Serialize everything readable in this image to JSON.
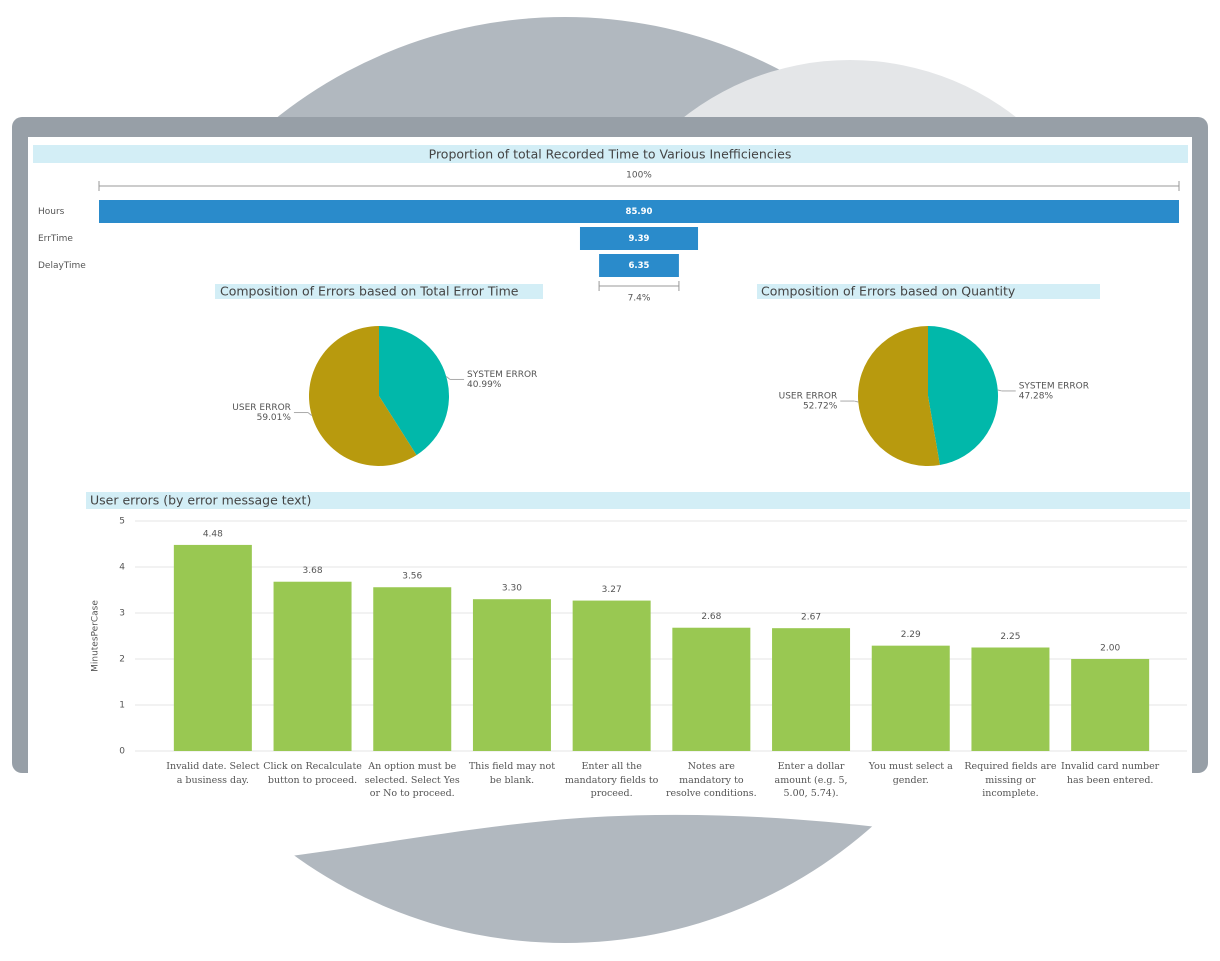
{
  "chart_data": [
    {
      "type": "funnel",
      "title": "Proportion of total Recorded Time to Various Inefficiencies",
      "categories": [
        "Hours",
        "ErrTime",
        "DelayTime"
      ],
      "values": [
        85.9,
        9.39,
        6.35
      ],
      "value_labels": [
        "85.90",
        "9.39",
        "6.35"
      ],
      "color": "#2a8bcb",
      "top_annotation": "100%",
      "bottom_annotation": "7.4%"
    },
    {
      "type": "pie",
      "title": "Composition of Errors based on Total Error Time",
      "categories": [
        "SYSTEM ERROR",
        "USER ERROR"
      ],
      "values": [
        40.99,
        59.01
      ],
      "value_labels": [
        "40.99%",
        "59.01%"
      ],
      "colors": [
        "#01b8aa",
        "#b89a0e"
      ]
    },
    {
      "type": "pie",
      "title": "Composition of Errors based on Quantity",
      "categories": [
        "SYSTEM ERROR",
        "USER ERROR"
      ],
      "values": [
        47.28,
        52.72
      ],
      "value_labels": [
        "47.28%",
        "52.72%"
      ],
      "colors": [
        "#01b8aa",
        "#b89a0e"
      ]
    },
    {
      "type": "bar",
      "title": "User errors (by error message text)",
      "y_label": "MinutesPerCase",
      "categories": [
        "Invalid date. Select a business day.",
        "Click on Recalculate button to proceed.",
        "An option must be selected. Select Yes or No to proceed.",
        "This field may not be blank.",
        "Enter all the mandatory fields to proceed.",
        "Notes are mandatory to resolve conditions.",
        "Enter a dollar amount (e.g. 5, 5.00, 5.74).",
        "You must select a gender.",
        "Required fields are missing or incomplete.",
        "Invalid card number has been entered."
      ],
      "values": [
        4.48,
        3.68,
        3.56,
        3.3,
        3.27,
        2.68,
        2.67,
        2.29,
        2.25,
        2.0
      ],
      "value_labels": [
        "4.48",
        "3.68",
        "3.56",
        "3.30",
        "3.27",
        "2.68",
        "2.67",
        "2.29",
        "2.25",
        "2.00"
      ],
      "color": "#99c852",
      "ylim": [
        0,
        5
      ],
      "yticks": [
        0,
        1,
        2,
        3,
        4,
        5
      ],
      "grid": true
    }
  ]
}
